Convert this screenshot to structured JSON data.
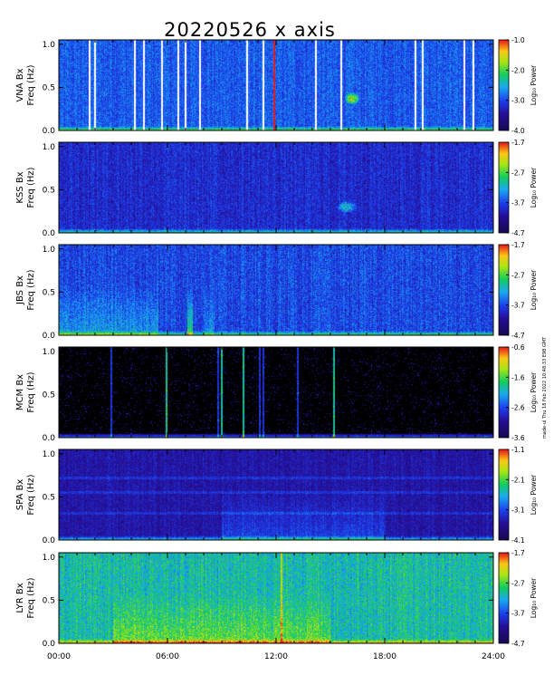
{
  "title": "20220526 x axis",
  "side_note": "made-ul Thu 18 Feb 2022 10:48:33 E98 GMT",
  "x_ticks": [
    "00:00",
    "06:00",
    "12:00",
    "18:00",
    "24:00"
  ],
  "y_ticks": [
    "0.0",
    "0.5",
    "1.0"
  ],
  "colorbar_label": "Log₁₀ Power",
  "colors": {
    "background": "#ffffff",
    "low_power": "#1b0b64",
    "mid_power": "#1c5cff",
    "high_power": "#f2ec1a",
    "max_power": "#e8191a"
  },
  "chart_data": [
    {
      "type": "heatmap",
      "station_label": "VNA Bx",
      "freq_label": "Freq (Hz)",
      "x_range": [
        0,
        24
      ],
      "y_range": [
        0,
        1.05
      ],
      "c_range": [
        -4.0,
        -1.0
      ],
      "cb_ticks": [
        "-1.0",
        "-2.0",
        "-3.0",
        "-4.0"
      ],
      "base": 0.36,
      "noise": 0.09,
      "events": [
        {
          "x": 16.2,
          "y": 0.37,
          "rx": 0.45,
          "ry": 0.07,
          "level": 0.45
        }
      ],
      "gaps": [
        1.7,
        2.0,
        4.2,
        4.7,
        5.7,
        6.6,
        7.0,
        7.8,
        10.4,
        11.3,
        14.2,
        15.6,
        19.7,
        20.1,
        22.4,
        22.9
      ],
      "red_lines": [
        11.9
      ],
      "enhance": []
    },
    {
      "type": "heatmap",
      "station_label": "KSS Bx",
      "freq_label": "Freq (Hz)",
      "x_range": [
        0,
        24
      ],
      "y_range": [
        0,
        1.05
      ],
      "c_range": [
        -4.7,
        -1.7
      ],
      "cb_ticks": [
        "-1.7",
        "-2.7",
        "-3.7",
        "-4.7"
      ],
      "base": 0.27,
      "noise": 0.09,
      "events": [
        {
          "x": 15.9,
          "y": 0.3,
          "rx": 0.55,
          "ry": 0.07,
          "level": 0.3
        }
      ],
      "gaps": [],
      "red_lines": [],
      "enhance": []
    },
    {
      "type": "heatmap",
      "station_label": "JBS Bx",
      "freq_label": "Freq (Hz)",
      "x_range": [
        0,
        24
      ],
      "y_range": [
        0,
        1.05
      ],
      "c_range": [
        -4.7,
        -1.7
      ],
      "cb_ticks": [
        "-1.7",
        "-2.7",
        "-3.7",
        "-4.7"
      ],
      "base": 0.33,
      "noise": 0.1,
      "events": [],
      "gaps": [],
      "red_lines": [],
      "enhance": [
        [
          0,
          5.5,
          0.14
        ],
        [
          7.1,
          7.4,
          0.3
        ],
        [
          8.0,
          8.6,
          0.1
        ]
      ]
    },
    {
      "type": "heatmap",
      "station_label": "MCM Bx",
      "freq_label": "Freq (Hz)",
      "x_range": [
        0,
        24
      ],
      "y_range": [
        0,
        1.05
      ],
      "c_range": [
        -3.6,
        -0.6
      ],
      "cb_ticks": [
        "-0.6",
        "-1.6",
        "-2.6",
        "-3.6"
      ],
      "base": 0.06,
      "noise": 0.04,
      "events": [],
      "gaps": [],
      "red_lines": [],
      "enhance": [],
      "spikes": [
        5.95,
        9.0,
        10.2,
        15.2,
        2.9,
        8.8,
        11.1,
        11.3,
        13.2
      ]
    },
    {
      "type": "heatmap",
      "station_label": "SPA Bx",
      "freq_label": "Freq (Hz)",
      "x_range": [
        0,
        24
      ],
      "y_range": [
        0,
        1.05
      ],
      "c_range": [
        -4.1,
        -1.1
      ],
      "cb_ticks": [
        "-1.1",
        "-2.1",
        "-3.1",
        "-4.1"
      ],
      "base": 0.2,
      "noise": 0.07,
      "events": [],
      "gaps": [],
      "red_lines": [],
      "enhance": [
        [
          9.0,
          18.0,
          0.12
        ]
      ],
      "bands": [
        0.31,
        0.55,
        0.72
      ]
    },
    {
      "type": "heatmap",
      "station_label": "LYR Bx",
      "freq_label": "Freq (Hz)",
      "x_range": [
        0,
        24
      ],
      "y_range": [
        0,
        1.05
      ],
      "c_range": [
        -4.7,
        -1.7
      ],
      "cb_ticks": [
        "-1.7",
        "-2.7",
        "-3.7",
        "-4.7"
      ],
      "base": 0.55,
      "noise": 0.12,
      "events": [],
      "gaps": [],
      "red_lines": [],
      "enhance": [
        [
          3.0,
          15.0,
          0.15
        ]
      ],
      "green_lines": [
        12.3
      ]
    }
  ]
}
